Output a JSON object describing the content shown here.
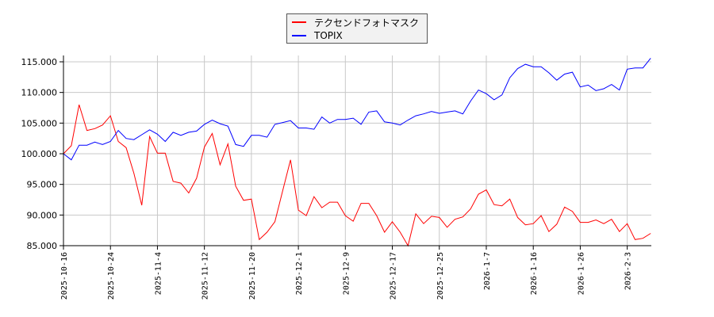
{
  "chart_data": {
    "type": "line",
    "title": "",
    "xlabel": "",
    "ylabel": "",
    "ylim": [
      85,
      115.5
    ],
    "yticks": [
      "85.000",
      "90.000",
      "95.000",
      "100.000",
      "105.000",
      "110.000",
      "115.000"
    ],
    "ytick_values": [
      85,
      90,
      95,
      100,
      105,
      110,
      115
    ],
    "xtick_labels": [
      "2025-10-16",
      "2025-10-24",
      "2025-11-4",
      "2025-11-12",
      "2025-11-20",
      "2025-12-1",
      "2025-12-9",
      "2025-12-17",
      "2025-12-25",
      "2026-1-7",
      "2026-1-16",
      "2026-1-26",
      "2026-2-3"
    ],
    "xtick_index": [
      0,
      6,
      12,
      18,
      24,
      30,
      36,
      42,
      48,
      54,
      60,
      66,
      72
    ],
    "grid": true,
    "legend_position": "top-center",
    "series": [
      {
        "name": "テクセンドフォトマスク",
        "color": "#ff0000",
        "values": [
          100.0,
          101.3,
          108.0,
          103.8,
          104.1,
          104.7,
          106.2,
          102.0,
          101.0,
          96.8,
          91.6,
          102.8,
          100.1,
          100.1,
          95.5,
          95.2,
          93.6,
          96.0,
          101.1,
          103.3,
          98.2,
          101.6,
          94.7,
          92.4,
          92.6,
          86.0,
          87.2,
          88.9,
          94.0,
          99.0,
          90.8,
          89.9,
          93.0,
          91.2,
          92.1,
          92.1,
          89.9,
          89.0,
          91.9,
          91.9,
          89.9,
          87.2,
          88.9,
          87.2,
          85.0,
          90.2,
          88.6,
          89.8,
          89.6,
          88.0,
          89.3,
          89.7,
          91.0,
          93.4,
          94.1,
          91.7,
          91.5,
          92.6,
          89.6,
          88.4,
          88.6,
          89.9,
          87.3,
          88.5,
          91.3,
          90.6,
          88.8,
          88.8,
          89.2,
          88.6,
          89.3,
          87.3,
          88.6,
          86.0,
          86.2,
          87.0
        ]
      },
      {
        "name": "TOPIX",
        "color": "#0000ff",
        "values": [
          100.0,
          99.0,
          101.4,
          101.4,
          101.9,
          101.5,
          102.0,
          103.8,
          102.5,
          102.3,
          103.1,
          103.9,
          103.2,
          102.0,
          103.5,
          103.0,
          103.5,
          103.7,
          104.8,
          105.5,
          104.9,
          104.5,
          101.5,
          101.2,
          103.0,
          103.0,
          102.7,
          104.8,
          105.1,
          105.4,
          104.2,
          104.2,
          104.0,
          106.0,
          105.0,
          105.6,
          105.6,
          105.8,
          104.8,
          106.8,
          107.0,
          105.2,
          105.0,
          104.7,
          105.5,
          106.2,
          106.5,
          106.9,
          106.6,
          106.8,
          107.0,
          106.5,
          108.6,
          110.4,
          109.8,
          108.8,
          109.6,
          112.4,
          113.9,
          114.6,
          114.2,
          114.2,
          113.2,
          112.0,
          113.0,
          113.3,
          110.9,
          111.2,
          110.3,
          110.6,
          111.3,
          110.4,
          113.8,
          114.0,
          114.0,
          115.6
        ]
      }
    ]
  }
}
